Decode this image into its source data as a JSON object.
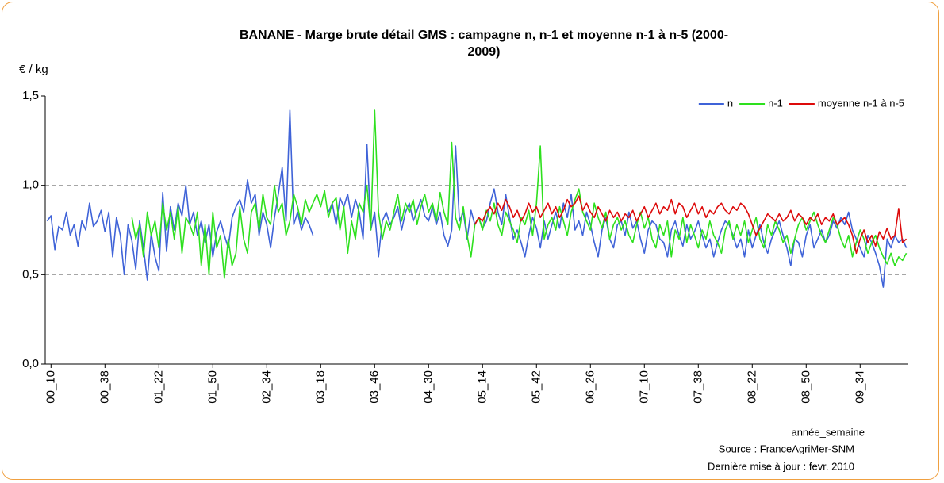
{
  "chart_data": {
    "type": "line",
    "title": "BANANE - Marge brute détail GMS : campagne n, n-1 et moyenne n-1 à n-5 (2000-2009)",
    "y_label": "€ / kg",
    "x_label": "année_semaine",
    "source": "Source : FranceAgriMer-SNM",
    "updated": "Dernière mise à jour : fevr. 2010",
    "legend": "upper right",
    "grid": true,
    "ylim": [
      0,
      1.5
    ],
    "yticks": [
      {
        "value": 0,
        "label": "0,0"
      },
      {
        "value": 0.5,
        "label": "0,5"
      },
      {
        "value": 1,
        "label": "1,0"
      },
      {
        "value": 1.5,
        "label": "1,5"
      }
    ],
    "categories": [
      null,
      "00_10",
      null,
      null,
      null,
      null,
      null,
      null,
      null,
      null,
      null,
      null,
      null,
      null,
      null,
      "00_38",
      null,
      null,
      null,
      null,
      null,
      null,
      null,
      null,
      null,
      null,
      null,
      null,
      null,
      "01_22",
      null,
      null,
      null,
      null,
      null,
      null,
      null,
      null,
      null,
      null,
      null,
      null,
      null,
      "01_50",
      null,
      null,
      null,
      null,
      null,
      null,
      null,
      null,
      null,
      null,
      null,
      null,
      null,
      "02_34",
      null,
      null,
      null,
      null,
      null,
      null,
      null,
      null,
      null,
      null,
      null,
      null,
      null,
      "03_18",
      null,
      null,
      null,
      null,
      null,
      null,
      null,
      null,
      null,
      null,
      null,
      null,
      null,
      "03_46",
      null,
      null,
      null,
      null,
      null,
      null,
      null,
      null,
      null,
      null,
      null,
      null,
      null,
      "04_30",
      null,
      null,
      null,
      null,
      null,
      null,
      null,
      null,
      null,
      null,
      null,
      null,
      null,
      "05_14",
      null,
      null,
      null,
      null,
      null,
      null,
      null,
      null,
      null,
      null,
      null,
      null,
      null,
      "05_42",
      null,
      null,
      null,
      null,
      null,
      null,
      null,
      null,
      null,
      null,
      null,
      null,
      null,
      "06_26",
      null,
      null,
      null,
      null,
      null,
      null,
      null,
      null,
      null,
      null,
      null,
      null,
      null,
      "07_10",
      null,
      null,
      null,
      null,
      null,
      null,
      null,
      null,
      null,
      null,
      null,
      null,
      null,
      "07_38",
      null,
      null,
      null,
      null,
      null,
      null,
      null,
      null,
      null,
      null,
      null,
      null,
      null,
      "08_22",
      null,
      null,
      null,
      null,
      null,
      null,
      null,
      null,
      null,
      null,
      null,
      null,
      null,
      "08_50",
      null,
      null,
      null,
      null,
      null,
      null,
      null,
      null,
      null,
      null,
      null,
      null,
      null,
      "09_34",
      null,
      null,
      null,
      null,
      null,
      null,
      null,
      null,
      null,
      null,
      null,
      null
    ],
    "series": [
      {
        "name": "n",
        "color": "#3f63d8",
        "values": [
          0.8,
          0.83,
          0.64,
          0.77,
          0.75,
          0.85,
          0.72,
          0.78,
          0.66,
          0.8,
          0.75,
          0.9,
          0.77,
          0.8,
          0.86,
          0.74,
          0.85,
          0.6,
          0.82,
          0.72,
          0.5,
          0.78,
          0.69,
          0.53,
          0.8,
          0.65,
          0.47,
          0.73,
          0.6,
          0.52,
          0.96,
          0.63,
          0.88,
          0.75,
          0.9,
          0.83,
          1.0,
          0.78,
          0.85,
          0.72,
          0.8,
          0.68,
          0.78,
          0.6,
          0.74,
          0.8,
          0.72,
          0.65,
          0.82,
          0.88,
          0.92,
          0.85,
          1.03,
          0.9,
          0.95,
          0.72,
          0.85,
          0.78,
          0.65,
          0.82,
          0.95,
          1.1,
          0.8,
          1.42,
          0.78,
          0.85,
          0.75,
          0.82,
          0.78,
          0.72,
          null,
          null,
          null,
          0.85,
          0.9,
          0.78,
          0.93,
          0.88,
          0.95,
          0.82,
          0.92,
          0.85,
          0.7,
          1.23,
          0.75,
          0.85,
          0.6,
          0.8,
          0.85,
          0.78,
          0.82,
          0.88,
          0.75,
          0.85,
          0.9,
          0.8,
          0.86,
          0.92,
          0.83,
          0.8,
          0.88,
          0.78,
          0.85,
          0.72,
          0.66,
          0.75,
          1.22,
          0.8,
          0.85,
          0.7,
          0.86,
          0.78,
          0.82,
          0.76,
          0.8,
          0.9,
          0.98,
          0.85,
          0.78,
          0.95,
          0.82,
          0.7,
          0.75,
          0.68,
          0.6,
          0.72,
          0.82,
          0.76,
          0.65,
          0.8,
          0.7,
          0.78,
          0.85,
          0.76,
          0.9,
          0.82,
          0.95,
          0.75,
          0.8,
          0.72,
          0.85,
          0.78,
          0.68,
          0.6,
          0.75,
          0.82,
          0.7,
          0.65,
          0.78,
          0.8,
          0.72,
          0.85,
          0.76,
          0.8,
          0.7,
          0.62,
          0.75,
          0.8,
          0.78,
          0.7,
          0.68,
          0.6,
          0.75,
          0.8,
          0.72,
          0.66,
          0.78,
          0.7,
          0.74,
          0.8,
          0.72,
          0.65,
          0.7,
          0.6,
          0.68,
          0.75,
          0.8,
          0.78,
          0.72,
          0.65,
          0.7,
          0.6,
          0.75,
          0.65,
          0.72,
          0.78,
          0.68,
          0.62,
          0.7,
          0.75,
          0.8,
          0.72,
          0.65,
          0.55,
          0.7,
          0.68,
          0.6,
          0.72,
          0.78,
          0.65,
          0.7,
          0.75,
          0.68,
          0.72,
          0.8,
          0.76,
          0.82,
          0.78,
          0.85,
          0.75,
          0.7,
          0.65,
          0.6,
          0.72,
          0.68,
          0.62,
          0.55,
          0.43,
          0.7,
          0.65,
          0.72,
          0.68,
          0.7,
          0.65
        ]
      },
      {
        "name": "n-1",
        "color": "#2ee01e",
        "values": [
          null,
          null,
          null,
          null,
          null,
          null,
          null,
          null,
          null,
          null,
          null,
          null,
          null,
          null,
          null,
          null,
          null,
          null,
          null,
          null,
          null,
          null,
          0.82,
          0.7,
          0.78,
          0.6,
          0.85,
          0.72,
          0.8,
          0.65,
          0.9,
          0.75,
          0.85,
          0.7,
          0.88,
          0.62,
          0.82,
          0.78,
          0.72,
          0.85,
          0.55,
          0.78,
          0.5,
          0.85,
          0.65,
          0.72,
          0.48,
          0.7,
          0.55,
          0.62,
          0.88,
          0.7,
          0.62,
          0.85,
          0.9,
          0.75,
          0.95,
          0.82,
          0.78,
          1.0,
          0.85,
          0.9,
          0.72,
          0.8,
          0.95,
          0.88,
          0.78,
          0.92,
          0.85,
          0.9,
          0.95,
          0.88,
          0.97,
          0.82,
          0.9,
          0.93,
          0.75,
          0.88,
          0.62,
          0.8,
          0.7,
          0.9,
          0.85,
          1.0,
          0.75,
          1.42,
          0.85,
          0.7,
          0.8,
          0.75,
          0.85,
          0.95,
          0.8,
          0.9,
          0.85,
          0.92,
          0.78,
          0.88,
          0.95,
          0.85,
          0.9,
          0.8,
          0.96,
          0.85,
          0.78,
          1.24,
          0.82,
          0.75,
          0.88,
          0.72,
          0.6,
          0.78,
          0.82,
          0.75,
          0.86,
          0.8,
          0.9,
          0.78,
          0.72,
          0.85,
          0.8,
          0.75,
          0.68,
          0.82,
          0.78,
          0.86,
          0.72,
          0.9,
          1.22,
          0.7,
          0.78,
          0.82,
          0.75,
          0.88,
          0.8,
          0.72,
          0.85,
          0.92,
          0.98,
          0.85,
          0.8,
          0.75,
          0.9,
          0.82,
          0.76,
          0.85,
          0.7,
          0.78,
          0.82,
          0.75,
          0.8,
          0.72,
          0.68,
          0.78,
          0.85,
          0.76,
          0.82,
          0.7,
          0.65,
          0.78,
          0.72,
          0.8,
          0.6,
          0.75,
          0.7,
          0.82,
          0.68,
          0.78,
          0.72,
          0.65,
          0.75,
          0.7,
          0.8,
          0.72,
          0.68,
          0.62,
          0.75,
          0.8,
          0.7,
          0.78,
          0.72,
          0.8,
          0.68,
          0.75,
          0.82,
          0.7,
          0.65,
          0.78,
          0.72,
          0.8,
          0.75,
          0.68,
          0.72,
          0.62,
          0.7,
          0.78,
          0.82,
          0.75,
          0.8,
          0.85,
          0.78,
          0.72,
          0.68,
          0.75,
          0.82,
          0.78,
          0.7,
          0.65,
          0.72,
          0.6,
          0.68,
          0.75,
          0.7,
          0.62,
          0.68,
          0.72,
          0.65,
          0.6,
          0.56,
          0.62,
          0.55,
          0.6,
          0.58,
          0.62
        ]
      },
      {
        "name": "moyenne n-1 à n-5",
        "color": "#dd0a0a",
        "values": [
          null,
          null,
          null,
          null,
          null,
          null,
          null,
          null,
          null,
          null,
          null,
          null,
          null,
          null,
          null,
          null,
          null,
          null,
          null,
          null,
          null,
          null,
          null,
          null,
          null,
          null,
          null,
          null,
          null,
          null,
          null,
          null,
          null,
          null,
          null,
          null,
          null,
          null,
          null,
          null,
          null,
          null,
          null,
          null,
          null,
          null,
          null,
          null,
          null,
          null,
          null,
          null,
          null,
          null,
          null,
          null,
          null,
          null,
          null,
          null,
          null,
          null,
          null,
          null,
          null,
          null,
          null,
          null,
          null,
          null,
          null,
          null,
          null,
          null,
          null,
          null,
          null,
          null,
          null,
          null,
          null,
          null,
          null,
          null,
          null,
          null,
          null,
          null,
          null,
          null,
          null,
          null,
          null,
          null,
          null,
          null,
          null,
          null,
          null,
          null,
          null,
          null,
          null,
          null,
          null,
          null,
          null,
          null,
          null,
          null,
          null,
          0.78,
          0.82,
          0.8,
          0.85,
          0.88,
          0.84,
          0.9,
          0.86,
          0.92,
          0.88,
          0.82,
          0.86,
          0.8,
          0.84,
          0.9,
          0.85,
          0.88,
          0.82,
          0.86,
          0.9,
          0.84,
          0.88,
          0.82,
          0.86,
          0.92,
          0.88,
          0.9,
          0.94,
          0.86,
          0.9,
          0.85,
          0.82,
          0.88,
          0.84,
          0.8,
          0.86,
          0.82,
          0.85,
          0.8,
          0.84,
          0.82,
          0.86,
          0.8,
          0.84,
          0.88,
          0.82,
          0.86,
          0.9,
          0.84,
          0.88,
          0.86,
          0.92,
          0.84,
          0.9,
          0.88,
          0.82,
          0.86,
          0.9,
          0.84,
          0.88,
          0.82,
          0.86,
          0.84,
          0.88,
          0.9,
          0.86,
          0.84,
          0.88,
          0.86,
          0.9,
          0.88,
          0.84,
          0.78,
          0.72,
          0.76,
          0.8,
          0.84,
          0.82,
          0.8,
          0.84,
          0.8,
          0.82,
          0.86,
          0.8,
          0.84,
          0.82,
          0.78,
          0.82,
          0.8,
          0.84,
          0.78,
          0.82,
          0.8,
          0.84,
          0.78,
          0.8,
          0.82,
          0.78,
          0.72,
          0.62,
          0.7,
          0.75,
          0.68,
          0.72,
          0.66,
          0.74,
          0.7,
          0.76,
          0.7,
          0.72,
          0.87,
          0.68,
          0.7
        ]
      }
    ]
  }
}
